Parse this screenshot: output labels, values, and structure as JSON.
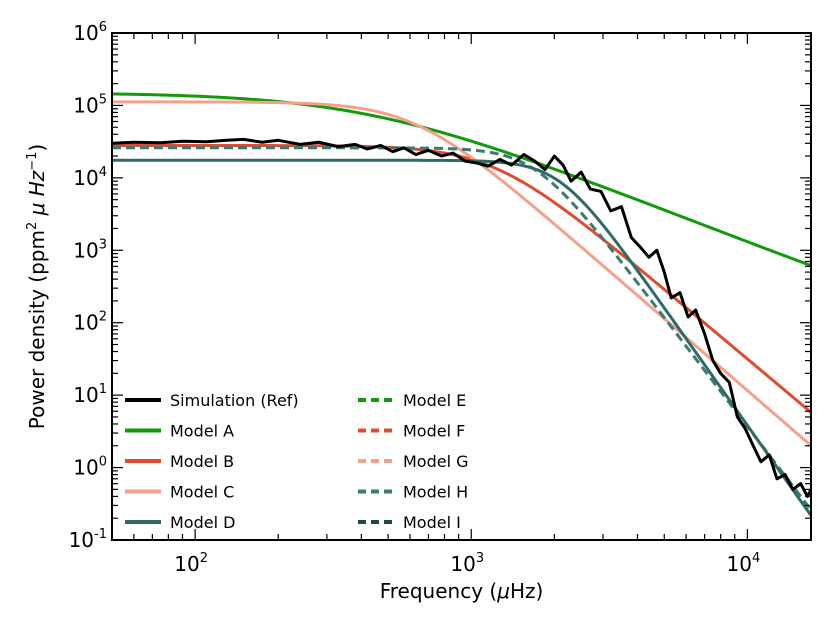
{
  "chart_data": {
    "type": "line",
    "xscale": "log",
    "yscale": "log",
    "xlim": [
      50,
      17000
    ],
    "ylim": [
      0.1,
      1000000
    ],
    "xlabel": "Frequency (μHz)",
    "ylabel": "Power density (ppm² μ Hz⁻¹)",
    "xlabel_parts": {
      "pre": "Frequency (",
      "mu": "μ",
      "post": "Hz)"
    },
    "ylabel_parts": {
      "pre": "Power density (ppm",
      "sup1": "2",
      "mid": " μ Hz",
      "sup2": "−1",
      "post": ")"
    },
    "x_ticks": [
      {
        "value": 100,
        "base": "10",
        "exp": "2"
      },
      {
        "value": 1000,
        "base": "10",
        "exp": "3"
      },
      {
        "value": 10000,
        "base": "10",
        "exp": "4"
      }
    ],
    "y_ticks": [
      {
        "value": 0.1,
        "base": "10",
        "exp": "-1"
      },
      {
        "value": 1,
        "base": "10",
        "exp": "0"
      },
      {
        "value": 10,
        "base": "10",
        "exp": "1"
      },
      {
        "value": 100,
        "base": "10",
        "exp": "2"
      },
      {
        "value": 1000,
        "base": "10",
        "exp": "3"
      },
      {
        "value": 10000,
        "base": "10",
        "exp": "4"
      },
      {
        "value": 100000,
        "base": "10",
        "exp": "5"
      },
      {
        "value": 1000000,
        "base": "10",
        "exp": "6"
      }
    ],
    "series": [
      {
        "name": "Simulation (Ref)",
        "color": "#000000",
        "style": "solid",
        "x": [
          50,
          60,
          75,
          90,
          110,
          130,
          150,
          175,
          200,
          240,
          280,
          330,
          380,
          420,
          470,
          520,
          570,
          630,
          700,
          780,
          860,
          950,
          1050,
          1150,
          1270,
          1400,
          1550,
          1700,
          1850,
          2000,
          2150,
          2300,
          2500,
          2700,
          2950,
          3200,
          3500,
          3800,
          4100,
          4400,
          4700,
          5000,
          5300,
          5700,
          6100,
          6500,
          7000,
          7500,
          8000,
          8600,
          9200,
          9800,
          10500,
          11200,
          12000,
          12800,
          13700,
          14600,
          15600,
          16500,
          17000
        ],
        "y": [
          30000,
          31000,
          30500,
          32000,
          31500,
          33000,
          34000,
          31000,
          33000,
          29000,
          31000,
          27000,
          29000,
          25000,
          28000,
          23000,
          26000,
          21000,
          24000,
          20000,
          22000,
          17000,
          16000,
          14500,
          18000,
          15000,
          21000,
          17000,
          13000,
          20000,
          15000,
          9000,
          12000,
          7000,
          6500,
          3500,
          4000,
          1500,
          1100,
          800,
          1000,
          500,
          220,
          260,
          120,
          150,
          70,
          30,
          20,
          15,
          5,
          3.5,
          2,
          1.2,
          1.5,
          0.7,
          0.8,
          0.5,
          0.6,
          0.4,
          0.5
        ]
      },
      {
        "name": "Model A",
        "color": "#129a0a",
        "style": "solid",
        "model": {
          "c": 35,
          "P": 150000,
          "fc": 420,
          "alpha": 1.5
        }
      },
      {
        "name": "Model B",
        "color": "#e34b31",
        "style": "solid",
        "model": {
          "c": 0,
          "P": 28000,
          "fc": 1200,
          "alpha": 3.2
        }
      },
      {
        "name": "Model C",
        "color": "#f4a08b",
        "style": "solid",
        "model": {
          "c": 0,
          "P": 112000,
          "fc": 620,
          "alpha": 3.3
        }
      },
      {
        "name": "Model D",
        "color": "#2e6b66",
        "style": "solid",
        "model": {
          "c": 0,
          "P": 17500,
          "fc": 2100,
          "alpha": 5.4
        }
      },
      {
        "name": "Model E",
        "color": "#129a0a",
        "style": "dashed"
      },
      {
        "name": "Model F",
        "color": "#e34b31",
        "style": "dashed"
      },
      {
        "name": "Model G",
        "color": "#f4a08b",
        "style": "dashed"
      },
      {
        "name": "Model H",
        "color": "#3b7a73",
        "style": "dashed",
        "model": {
          "c": 0,
          "P": 26000,
          "fc": 1700,
          "alpha": 5.0
        }
      },
      {
        "name": "Model I",
        "color": "#1f4a3d",
        "style": "dashed"
      }
    ],
    "legend": {
      "location": "lower-left",
      "columns": 2
    }
  }
}
